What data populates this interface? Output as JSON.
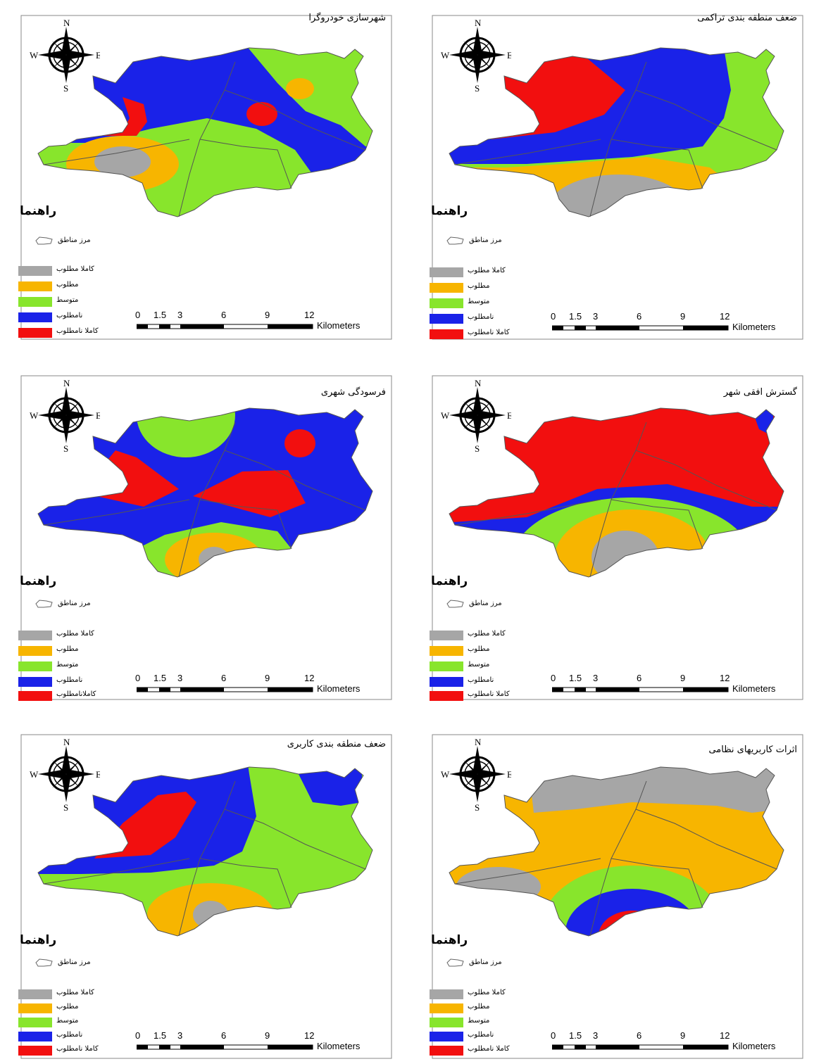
{
  "colors": {
    "very_suitable": "#a6a6a6",
    "suitable": "#f7b500",
    "medium": "#88e52c",
    "unsuitable": "#1a22e8",
    "very_unsuitable": "#f20f0f",
    "boundary": "#555555"
  },
  "compass": {
    "n": "N",
    "s": "S",
    "e": "E",
    "w": "W"
  },
  "scale": {
    "ticks": [
      "0",
      "1.5",
      "3",
      "6",
      "9",
      "12"
    ],
    "unit": "Kilometers"
  },
  "legend_title": "راهنما",
  "boundary_label": "مرز مناطق",
  "panels": [
    {
      "title": "شهرسازی خودروگرا",
      "legend": [
        "کاملا مطلوب",
        "مطلوب",
        "متوسط",
        "نامطلوب",
        "کاملا نامطلوب"
      ]
    },
    {
      "title": "ضعف منطقه بندی تراکمی",
      "legend": [
        "کاملا مطلوب",
        "مطلوب",
        "متوسط",
        "نامطلوب",
        "کاملا نامطلوب"
      ]
    },
    {
      "title": "فرسودگی شهری",
      "legend": [
        "کاملا مطلوب",
        "مطلوب",
        "متوسط",
        "نامطلوب",
        "کاملانامطلوب"
      ]
    },
    {
      "title": "گسترش افقی شهر",
      "legend": [
        "کاملا مطلوب",
        "مطلوب",
        "متوسط",
        "نامطلوب",
        "کاملا نامطلوب"
      ]
    },
    {
      "title": "ضعف منطقه بندی کاربری",
      "legend": [
        "کاملا مطلوب",
        "مطلوب",
        "متوسط",
        "نامطلوب",
        "کاملا نامطلوب"
      ]
    },
    {
      "title": "اثرات کاربریهای نظامی",
      "legend": [
        "کاملا مطلوب",
        "مطلوب",
        "متوسط",
        "نامطلوب",
        "کاملا نامطلوب"
      ]
    }
  ]
}
